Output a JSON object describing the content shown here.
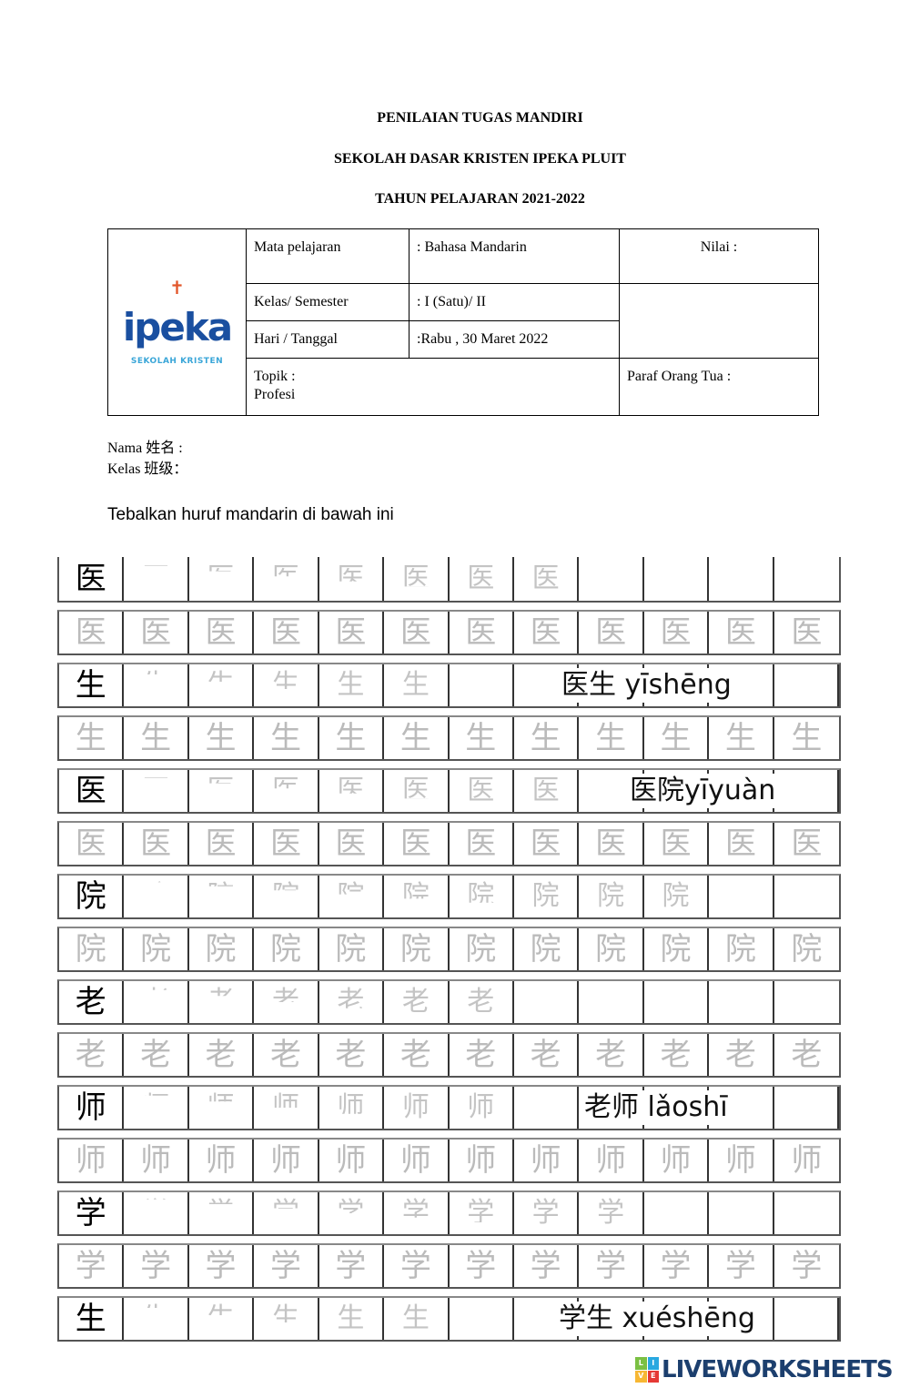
{
  "header": {
    "line1": "PENILAIAN TUGAS MANDIRI",
    "line2": "SEKOLAH DASAR KRISTEN IPEKA PLUIT",
    "line3": "TAHUN PELAJARAN 2021-2022"
  },
  "logo": {
    "word": "ipeka",
    "sub": "SEKOLAH KRISTEN"
  },
  "info": {
    "subject_label": "Mata pelajaran",
    "subject_value": ": Bahasa Mandarin",
    "nilai_label": "Nilai :",
    "class_label": "Kelas/ Semester",
    "class_value": ": I (Satu)/ II",
    "date_label": "Hari / Tanggal",
    "date_value": ":Rabu , 30  Maret  2022",
    "topic_label": "Topik :",
    "topic_value": "Profesi",
    "paraf_label": "Paraf Orang Tua :"
  },
  "student": {
    "name_label": "Nama 姓名 :",
    "class_label": "Kelas 班级："
  },
  "instruction": "Tebalkan huruf mandarin di bawah ini",
  "rows": [
    {
      "type": "stroke",
      "char": "医",
      "strokes": 7,
      "overlay": ""
    },
    {
      "type": "trace",
      "char": "医"
    },
    {
      "type": "stroke",
      "char": "生",
      "strokes": 5,
      "overlay": "医生 yīshēng"
    },
    {
      "type": "trace",
      "char": "生"
    },
    {
      "type": "stroke",
      "char": "医",
      "strokes": 7,
      "overlay": "医院yīyuàn"
    },
    {
      "type": "trace",
      "char": "医"
    },
    {
      "type": "stroke",
      "char": "院",
      "strokes": 9,
      "overlay": ""
    },
    {
      "type": "trace",
      "char": "院"
    },
    {
      "type": "stroke",
      "char": "老",
      "strokes": 6,
      "overlay": ""
    },
    {
      "type": "trace",
      "char": "老"
    },
    {
      "type": "stroke",
      "char": "师",
      "strokes": 6,
      "overlay": "老师 lǎoshī"
    },
    {
      "type": "trace",
      "char": "师"
    },
    {
      "type": "stroke",
      "char": "学",
      "strokes": 8,
      "overlay": ""
    },
    {
      "type": "trace",
      "char": "学"
    },
    {
      "type": "stroke",
      "char": "生",
      "strokes": 5,
      "overlay": "学生 xuéshēng"
    }
  ],
  "watermark": {
    "text": "LIVEWORKSHEETS",
    "badge": [
      "L",
      "I",
      "V",
      "E"
    ],
    "color": "#1c3f6e"
  }
}
